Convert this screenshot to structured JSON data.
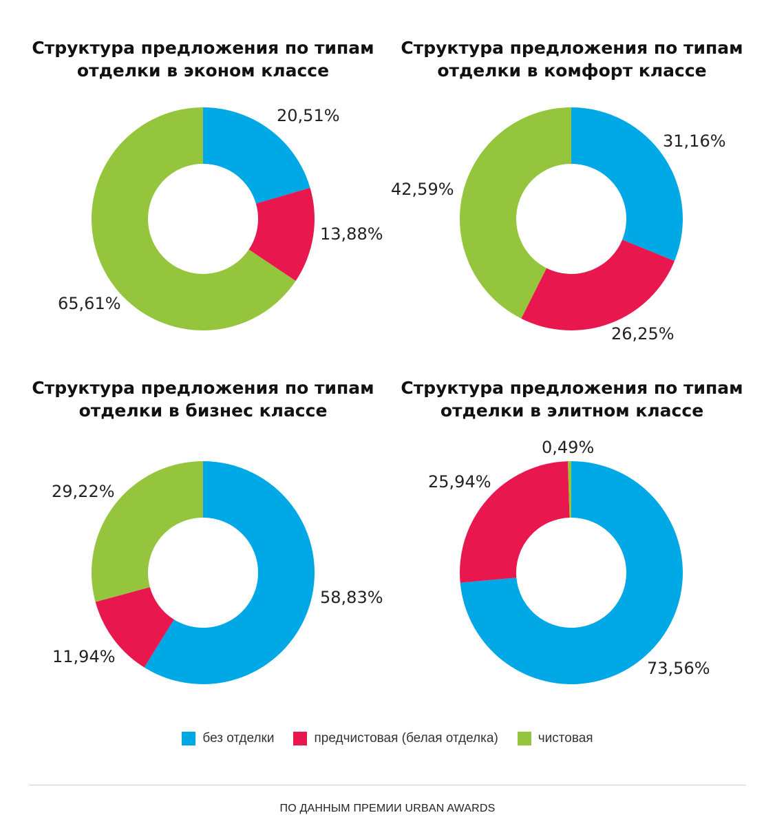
{
  "colors": {
    "bez_otdelki": "#00a8e6",
    "predchistovaya": "#e8174e",
    "chistovaya": "#94c53d"
  },
  "chart_data": [
    {
      "type": "pie",
      "title": "Структура предложения по типам отделки в эконом классе",
      "title_lines": [
        "Структура предложения по типам",
        "отделки в эконом классе"
      ],
      "slices": [
        {
          "name": "без отделки",
          "value": 20.51,
          "label": "20,51%"
        },
        {
          "name": "предчистовая (белая отделка)",
          "value": 13.88,
          "label": "13,88%"
        },
        {
          "name": "чистовая",
          "value": 65.61,
          "label": "65,61%"
        }
      ]
    },
    {
      "type": "pie",
      "title": "Структура предложения по типам отделки в комфорт классе",
      "title_lines": [
        "Структура предложения по типам",
        "отделки в комфорт классе"
      ],
      "slices": [
        {
          "name": "без отделки",
          "value": 31.16,
          "label": "31,16%"
        },
        {
          "name": "предчистовая (белая отделка)",
          "value": 26.25,
          "label": "26,25%"
        },
        {
          "name": "чистовая",
          "value": 42.59,
          "label": "42,59%"
        }
      ]
    },
    {
      "type": "pie",
      "title": "Структура предложения по типам отделки в бизнес классе",
      "title_lines": [
        "Структура предложения по типам",
        "отделки в бизнес классе"
      ],
      "slices": [
        {
          "name": "без отделки",
          "value": 58.83,
          "label": "58,83%"
        },
        {
          "name": "предчистовая (белая отделка)",
          "value": 11.94,
          "label": "11,94%"
        },
        {
          "name": "чистовая",
          "value": 29.22,
          "label": "29,22%"
        }
      ]
    },
    {
      "type": "pie",
      "title": "Структура предложения по типам отделки в элитном классе",
      "title_lines": [
        "Структура предложения по типам",
        "отделки в элитном классе"
      ],
      "slices": [
        {
          "name": "без отделки",
          "value": 73.56,
          "label": "73,56%"
        },
        {
          "name": "предчистовая (белая отделка)",
          "value": 25.94,
          "label": "25,94%"
        },
        {
          "name": "чистовая",
          "value": 0.49,
          "label": "0,49%"
        }
      ]
    }
  ],
  "legend": [
    {
      "label": "без отделки",
      "color_key": "bez_otdelki"
    },
    {
      "label": "предчистовая (белая отделка)",
      "color_key": "predchistovaya"
    },
    {
      "label": "чистовая",
      "color_key": "chistovaya"
    }
  ],
  "source": "ПО ДАННЫМ ПРЕМИИ URBAN AWARDS"
}
